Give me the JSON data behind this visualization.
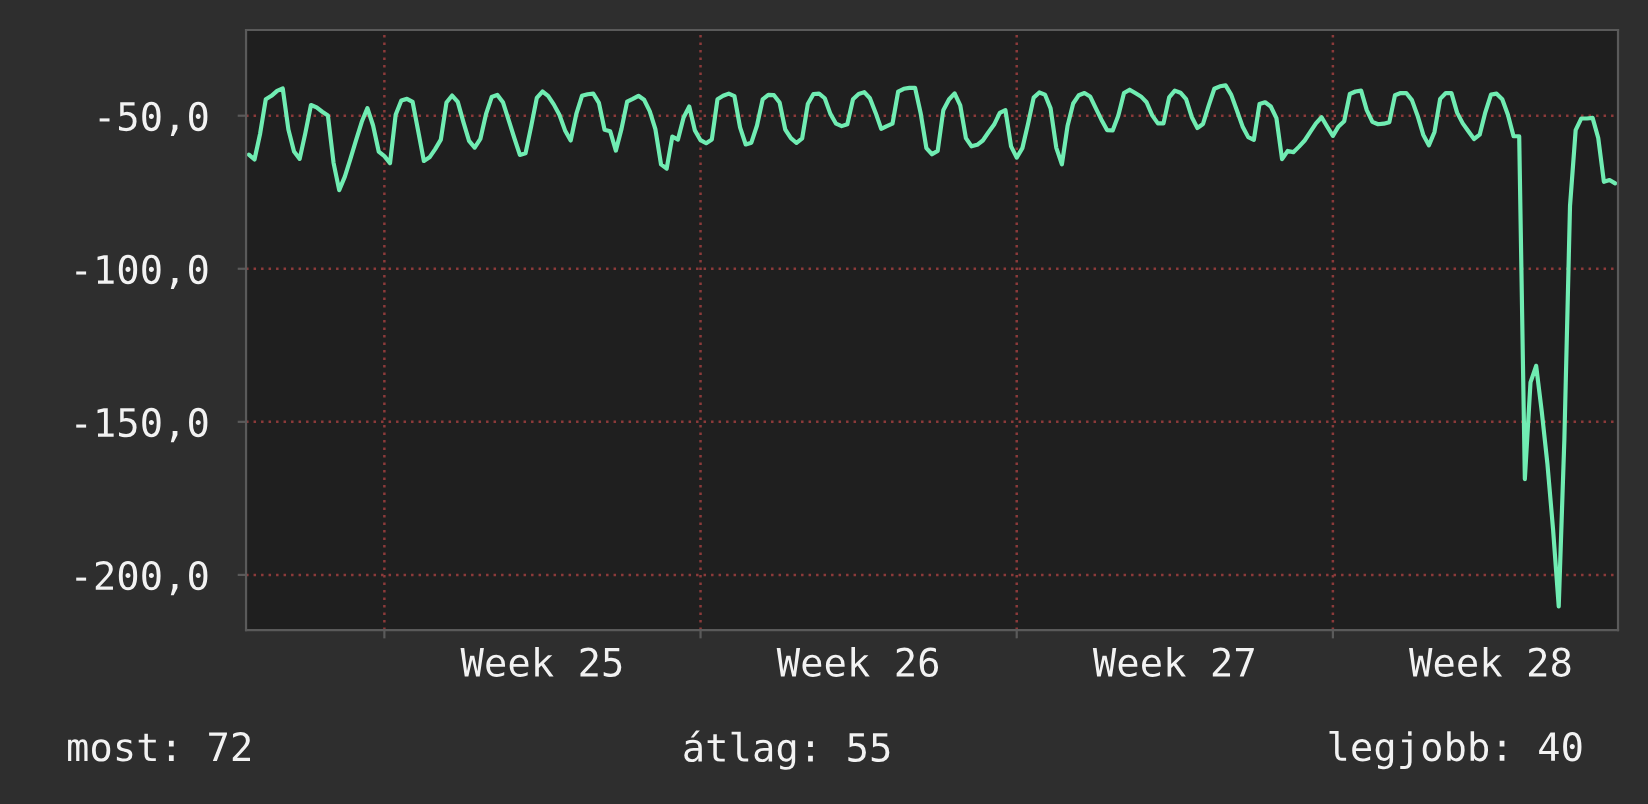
{
  "chart_data": {
    "type": "line",
    "annotations": [
      "most: 72",
      "átlag: 55",
      "legjobb: 40"
    ],
    "categories": [
      null,
      null,
      null,
      null,
      null,
      null,
      null,
      null,
      null,
      null,
      null,
      null,
      null,
      null,
      null,
      null,
      null,
      null,
      null,
      null,
      null,
      null,
      null,
      null,
      null,
      null,
      null,
      null,
      null,
      null,
      null,
      null,
      null,
      null,
      null,
      null,
      null,
      null,
      null,
      null,
      null,
      null,
      null,
      null,
      null,
      null,
      null,
      null,
      null,
      null,
      null,
      null,
      "Week 25",
      null,
      null,
      null,
      null,
      null,
      null,
      null,
      null,
      null,
      null,
      null,
      null,
      null,
      null,
      null,
      null,
      null,
      null,
      null,
      null,
      null,
      null,
      null,
      null,
      null,
      null,
      null,
      null,
      null,
      null,
      null,
      null,
      null,
      null,
      null,
      null,
      null,
      null,
      null,
      null,
      null,
      null,
      null,
      null,
      null,
      null,
      null,
      null,
      null,
      null,
      null,
      null,
      null,
      null,
      null,
      "Week 26",
      null,
      null,
      null,
      null,
      null,
      null,
      null,
      null,
      null,
      null,
      null,
      null,
      null,
      null,
      null,
      null,
      null,
      null,
      null,
      null,
      null,
      null,
      null,
      null,
      null,
      null,
      null,
      null,
      null,
      null,
      null,
      null,
      null,
      null,
      null,
      null,
      null,
      null,
      null,
      null,
      null,
      null,
      null,
      null,
      null,
      null,
      null,
      null,
      null,
      null,
      null,
      null,
      null,
      null,
      null,
      "Week 27",
      null,
      null,
      null,
      null,
      null,
      null,
      null,
      null,
      null,
      null,
      null,
      null,
      null,
      null,
      null,
      null,
      null,
      null,
      null,
      null,
      null,
      null,
      null,
      null,
      null,
      null,
      null,
      null,
      null,
      null,
      null,
      null,
      null,
      null,
      null,
      null,
      null,
      null,
      null,
      null,
      null,
      null,
      null,
      null,
      null,
      null,
      null,
      null,
      null,
      null,
      null,
      null,
      null,
      null,
      null,
      "Week 28",
      null,
      null,
      null,
      null,
      null,
      null,
      null,
      null,
      null,
      null,
      null,
      null,
      null,
      null,
      null,
      null,
      null,
      null,
      null,
      null,
      null,
      null
    ],
    "series": [
      {
        "color": "#70ecb2",
        "values": [
          -62.7,
          -64.3,
          -55.8,
          -44.6,
          -43.5,
          -41.9,
          -41.1,
          -54.5,
          -61.7,
          -64.1,
          -55.7,
          -46.5,
          -47.3,
          -48.7,
          -49.9,
          -65.4,
          -74.3,
          -69.9,
          -64.0,
          -57.9,
          -52.0,
          -47.5,
          -53.2,
          -61.7,
          -63.2,
          -65.5,
          -49.7,
          -45.0,
          -44.5,
          -45.5,
          -55.1,
          -64.8,
          -63.6,
          -60.9,
          -57.8,
          -45.7,
          -43.4,
          -45.5,
          -52.1,
          -58.2,
          -60.4,
          -57.6,
          -49.5,
          -43.9,
          -43.2,
          -45.6,
          -51.4,
          -57.2,
          -62.8,
          -62.3,
          -53.5,
          -44.2,
          -42.1,
          -43.5,
          -46.3,
          -49.7,
          -54.8,
          -58.1,
          -49.4,
          -43.5,
          -43.0,
          -42.8,
          -45.8,
          -54.6,
          -55.1,
          -61.4,
          -54.3,
          -45.4,
          -44.5,
          -43.5,
          -44.8,
          -48.5,
          -54.4,
          -65.9,
          -67.3,
          -56.8,
          -57.8,
          -50.6,
          -47.0,
          -54.8,
          -58.0,
          -59.0,
          -57.8,
          -44.6,
          -43.5,
          -42.8,
          -43.6,
          -53.8,
          -59.4,
          -58.8,
          -53.2,
          -44.7,
          -43.2,
          -43.3,
          -45.7,
          -54.5,
          -57.3,
          -58.9,
          -57.4,
          -46.2,
          -42.9,
          -42.8,
          -44.3,
          -49.4,
          -52.6,
          -53.4,
          -52.8,
          -44.6,
          -42.9,
          -42.3,
          -44.3,
          -49.0,
          -54.3,
          -53.4,
          -52.6,
          -42.1,
          -41.2,
          -40.9,
          -40.9,
          -49.3,
          -60.6,
          -62.6,
          -61.5,
          -48.2,
          -44.7,
          -42.7,
          -46.6,
          -57.3,
          -60.0,
          -59.5,
          -58.1,
          -55.4,
          -52.9,
          -49.1,
          -48.2,
          -60.0,
          -63.7,
          -60.6,
          -52.7,
          -44.1,
          -42.4,
          -43.1,
          -47.6,
          -60.4,
          -65.9,
          -53.4,
          -46.0,
          -43.3,
          -42.6,
          -43.7,
          -47.5,
          -51.3,
          -54.7,
          -54.8,
          -49.9,
          -42.6,
          -41.5,
          -42.6,
          -43.7,
          -45.6,
          -49.9,
          -52.5,
          -52.5,
          -44.0,
          -41.8,
          -42.5,
          -44.6,
          -50.4,
          -54.0,
          -52.7,
          -46.7,
          -41.2,
          -40.4,
          -40.1,
          -43.2,
          -48.3,
          -53.5,
          -57.0,
          -57.9,
          -46.2,
          -45.6,
          -47.0,
          -50.8,
          -64.2,
          -61.5,
          -61.9,
          -60.1,
          -58.1,
          -55.3,
          -52.5,
          -50.5,
          -53.6,
          -56.6,
          -53.5,
          -51.8,
          -42.9,
          -42.1,
          -41.8,
          -48.2,
          -52.0,
          -52.8,
          -52.6,
          -52.1,
          -43.3,
          -42.6,
          -42.6,
          -44.9,
          -50.0,
          -56.2,
          -59.7,
          -55.3,
          -44.5,
          -42.6,
          -42.6,
          -49.0,
          -52.5,
          -55.1,
          -57.6,
          -56.2,
          -48.9,
          -43.1,
          -42.8,
          -44.6,
          -49.7,
          -56.7,
          -56.7,
          -168.7,
          -137.1,
          -131.7,
          -146.7,
          -163.8,
          -185.2,
          -210.3,
          -155.7,
          -79.5,
          -54.7,
          -50.9,
          -50.9,
          -50.7,
          -57.3,
          -71.6,
          -71.0,
          -72.1
        ]
      }
    ],
    "ylim": [
      -218,
      -22
    ],
    "yticks": [
      {
        "value": -50,
        "label": "-50,0"
      },
      {
        "value": -100,
        "label": "-100,0"
      },
      {
        "value": -150,
        "label": "-150,0"
      },
      {
        "value": -200,
        "label": "-200,0"
      }
    ],
    "grid": true
  }
}
